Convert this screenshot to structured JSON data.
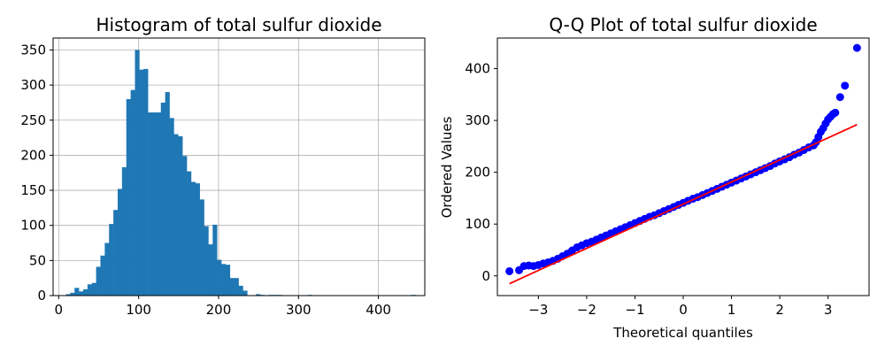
{
  "chart_data": [
    {
      "type": "bar",
      "title": "Histogram of total sulfur dioxide",
      "xlabel": "",
      "ylabel": "",
      "xlim": [
        -7,
        458
      ],
      "ylim": [
        0,
        367
      ],
      "grid": true,
      "color": "#1f77b4",
      "xticks": [
        0,
        100,
        200,
        300,
        400
      ],
      "yticks": [
        0,
        50,
        100,
        150,
        200,
        250,
        300,
        350
      ],
      "bin_start": 9,
      "bin_width": 5.4,
      "values": [
        2,
        4,
        11,
        6,
        9,
        16,
        18,
        41,
        57,
        75,
        102,
        122,
        152,
        183,
        280,
        293,
        350,
        322,
        323,
        261,
        261,
        261,
        275,
        290,
        253,
        230,
        227,
        199,
        177,
        162,
        160,
        137,
        99,
        73,
        101,
        51,
        45,
        44,
        25,
        25,
        14,
        7,
        0,
        0,
        2,
        1,
        0,
        1,
        1,
        1,
        0,
        0,
        0,
        0,
        0,
        0,
        1,
        0,
        0,
        0,
        0,
        0,
        0,
        0,
        0,
        0,
        0,
        0,
        0,
        0,
        0,
        0,
        0,
        0,
        0,
        0,
        0,
        0,
        0,
        0,
        1
      ]
    },
    {
      "type": "scatter",
      "title": "Q-Q Plot of total sulfur dioxide",
      "xlabel": "Theoretical quantiles",
      "ylabel": "Ordered Values",
      "xlim": [
        -3.85,
        3.85
      ],
      "ylim": [
        -38,
        459
      ],
      "grid": false,
      "xticks": [
        -3,
        -2,
        -1,
        0,
        1,
        2,
        3
      ],
      "xtick_labels": [
        "−3",
        "−2",
        "−1",
        "0",
        "1",
        "2",
        "3"
      ],
      "yticks": [
        0,
        100,
        200,
        300,
        400
      ],
      "point_color": "#0000ff",
      "line_color": "#ff0000",
      "fit_line": {
        "x": [
          -3.6,
          3.6
        ],
        "y": [
          -15,
          292
        ]
      },
      "points": [
        [
          -3.6,
          9
        ],
        [
          -3.4,
          11
        ],
        [
          -3.3,
          19
        ],
        [
          -3.2,
          20
        ],
        [
          -3.1,
          19
        ],
        [
          -3.0,
          21
        ],
        [
          -2.9,
          24
        ],
        [
          -2.8,
          26
        ],
        [
          -2.7,
          29
        ],
        [
          -2.6,
          33
        ],
        [
          -2.5,
          38
        ],
        [
          -2.4,
          43
        ],
        [
          -2.3,
          49
        ],
        [
          -2.2,
          55
        ],
        [
          -2.1,
          59
        ],
        [
          -2.0,
          63
        ],
        [
          -1.9,
          66
        ],
        [
          -1.8,
          70
        ],
        [
          -1.7,
          74
        ],
        [
          -1.6,
          78
        ],
        [
          -1.5,
          82
        ],
        [
          -1.4,
          86
        ],
        [
          -1.3,
          90
        ],
        [
          -1.2,
          94
        ],
        [
          -1.1,
          98
        ],
        [
          -1.0,
          102
        ],
        [
          -0.9,
          106
        ],
        [
          -0.8,
          110
        ],
        [
          -0.7,
          114
        ],
        [
          -0.6,
          117
        ],
        [
          -0.5,
          121
        ],
        [
          -0.4,
          125
        ],
        [
          -0.3,
          129
        ],
        [
          -0.2,
          133
        ],
        [
          -0.1,
          137
        ],
        [
          0.0,
          141
        ],
        [
          0.1,
          145
        ],
        [
          0.2,
          149
        ],
        [
          0.3,
          152
        ],
        [
          0.4,
          156
        ],
        [
          0.5,
          160
        ],
        [
          0.6,
          164
        ],
        [
          0.7,
          168
        ],
        [
          0.8,
          172
        ],
        [
          0.9,
          176
        ],
        [
          1.0,
          180
        ],
        [
          1.1,
          184
        ],
        [
          1.2,
          188
        ],
        [
          1.3,
          192
        ],
        [
          1.4,
          196
        ],
        [
          1.5,
          200
        ],
        [
          1.6,
          204
        ],
        [
          1.7,
          208
        ],
        [
          1.8,
          212
        ],
        [
          1.9,
          217
        ],
        [
          2.0,
          221
        ],
        [
          2.1,
          225
        ],
        [
          2.2,
          229
        ],
        [
          2.3,
          234
        ],
        [
          2.4,
          238
        ],
        [
          2.5,
          243
        ],
        [
          2.6,
          248
        ],
        [
          2.7,
          252
        ],
        [
          2.75,
          258
        ],
        [
          2.8,
          268
        ],
        [
          2.85,
          278
        ],
        [
          2.9,
          285
        ],
        [
          2.95,
          294
        ],
        [
          3.0,
          302
        ],
        [
          3.05,
          307
        ],
        [
          3.1,
          312
        ],
        [
          3.15,
          315
        ],
        [
          3.25,
          345
        ],
        [
          3.35,
          367
        ],
        [
          3.6,
          440
        ]
      ]
    }
  ]
}
